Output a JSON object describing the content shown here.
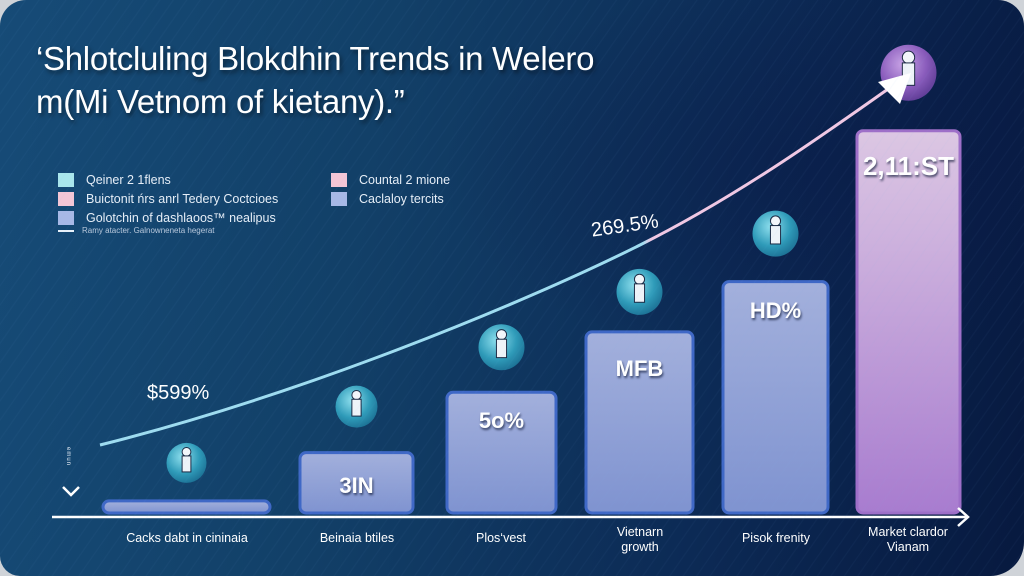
{
  "chart_data": {
    "type": "bar",
    "title": "‘Shlotcluling Blokdhin Trends in Welero m(Mi Vetnom of kietany).”",
    "categories": [
      "Cacks dabt in cininaia",
      "Beinaia btiles",
      "Plos‘vest",
      "Vietnarn growth",
      "Pisok frenity",
      "Market clardor Vianam"
    ],
    "series": [
      {
        "name": "Golotchin of dashlaoos™ nealipus",
        "values": [
          0.6,
          3,
          6,
          9,
          11.5,
          19
        ],
        "bar_labels": [
          "",
          "3IN",
          "5o%",
          "MFB",
          "HD%",
          "2,11:ST"
        ],
        "colors": [
          "#8e9fd6",
          "#8e9fd6",
          "#8e9fd6",
          "#8e9fd6",
          "#8e9fd6",
          "#c7a6dc"
        ],
        "border_colors": [
          "#3f68c6",
          "#3f68c6",
          "#3f68c6",
          "#3f68c6",
          "#3f68c6",
          "#9e6fc8"
        ]
      }
    ],
    "trend_line": {
      "name": "Ramy atacter. Galnowneneta hegerat",
      "start_color": "#9edcf0",
      "end_color": "#f0c8e4",
      "labels": [
        {
          "text": "$599%",
          "category_index": 0
        },
        {
          "text": "269.5%",
          "category_index": 3
        }
      ]
    },
    "legend": {
      "placement": "top-left",
      "left": [
        {
          "label": "Qeiner 2 1flens",
          "color": "#a9e6ec"
        },
        {
          "label": "Buictonit ńrs anrl Tedery Coctcioes",
          "color": "#f4c6d6"
        },
        {
          "label": "Golotchin of dashlaoos™ nealipus",
          "color": "#a7b8e6"
        }
      ],
      "right": [
        {
          "label": "Countal 2 mione",
          "color": "#f4c6d6"
        },
        {
          "label": "Caclaloy tercits",
          "color": "#a7b8e6"
        }
      ],
      "note": "Ramy atacter. Galnowneneta hegerat"
    },
    "y_axis_label": "emun",
    "icons": [
      "person-icon",
      "person-icon",
      "person-icon",
      "person-icon",
      "device-icon",
      "robot-icon"
    ],
    "icon_colors": [
      "#39a6c2",
      "#39a6c2",
      "#39a6c2",
      "#39a6c2",
      "#39a6c2",
      "#9a6cc2"
    ],
    "ylim": [
      0,
      25
    ],
    "grid": false
  }
}
